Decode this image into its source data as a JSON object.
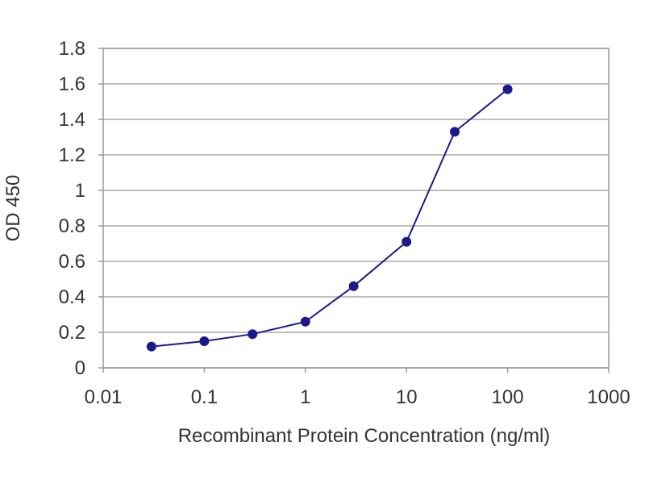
{
  "chart_data": {
    "type": "line",
    "title": "",
    "xlabel": "Recombinant Protein Concentration (ng/ml)",
    "ylabel": "OD 450",
    "xscale": "log",
    "xlim": [
      0.01,
      1000
    ],
    "ylim": [
      0,
      1.8
    ],
    "xticks": [
      "0.01",
      "0.1",
      "1",
      "10",
      "100",
      "1000"
    ],
    "yticks": [
      "0",
      "0.2",
      "0.4",
      "0.6",
      "0.8",
      "1",
      "1.2",
      "1.4",
      "1.6",
      "1.8"
    ],
    "grid": "horizontal",
    "legend": "none",
    "series": [
      {
        "x": [
          0.03,
          0.1,
          0.3,
          1,
          3,
          10,
          30,
          100
        ],
        "y": [
          0.12,
          0.15,
          0.19,
          0.26,
          0.46,
          0.71,
          1.33,
          1.57
        ],
        "color": "#1a1a8c"
      }
    ],
    "colors": {
      "gridline": "#aaaaaa",
      "axis": "#999999",
      "series": "#1a1a8c"
    }
  }
}
